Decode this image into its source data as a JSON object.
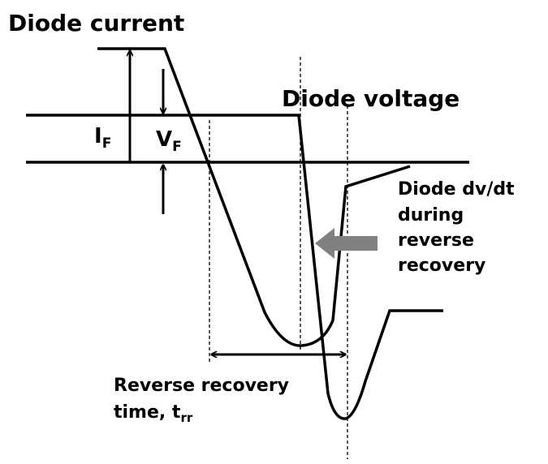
{
  "current_label": "Diode current",
  "voltage_label": "Diode voltage",
  "if_label": {
    "main": "I",
    "sub": "F"
  },
  "vf_label": {
    "main": "V",
    "sub": "F"
  },
  "dvdt_note": [
    "Diode dv/dt",
    "during",
    "reverse",
    "recovery"
  ],
  "trr_label": {
    "line1": "Reverse recovery",
    "line2": "time, t",
    "sub": "rr"
  }
}
